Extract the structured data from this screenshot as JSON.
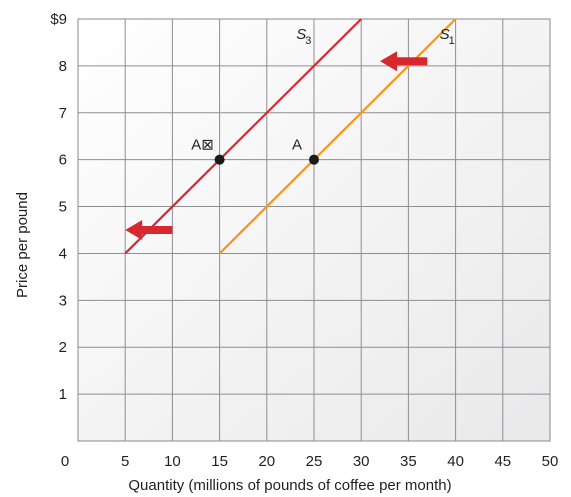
{
  "chart_data": {
    "type": "line",
    "xlabel": "Quantity (millions of pounds of coffee per month)",
    "ylabel": "Price per pound",
    "xlim": [
      0,
      50
    ],
    "ylim": [
      0,
      9
    ],
    "x_ticks": [
      "0",
      "5",
      "10",
      "15",
      "20",
      "25",
      "30",
      "35",
      "40",
      "45",
      "50"
    ],
    "y_ticks": [
      "",
      "1",
      "2",
      "3",
      "4",
      "5",
      "6",
      "7",
      "8",
      "$9"
    ],
    "grid": true,
    "series": [
      {
        "name": "S₃",
        "label_main": "S",
        "label_sub": "3",
        "color": "#d7282f",
        "x": [
          5,
          30
        ],
        "y": [
          4,
          9
        ]
      },
      {
        "name": "S₁",
        "label_main": "S",
        "label_sub": "1",
        "color": "#f7941d",
        "x": [
          15,
          40
        ],
        "y": [
          4,
          9
        ]
      }
    ],
    "points": [
      {
        "label": "A⊠",
        "x": 15,
        "y": 6
      },
      {
        "label": "A",
        "x": 25,
        "y": 6
      }
    ],
    "arrows": [
      {
        "direction": "left",
        "x_from": 37,
        "x_to": 32,
        "y": 8.1,
        "color": "#d7282f"
      },
      {
        "direction": "left",
        "x_from": 10,
        "x_to": 5,
        "y": 4.5,
        "color": "#d7282f"
      }
    ]
  }
}
